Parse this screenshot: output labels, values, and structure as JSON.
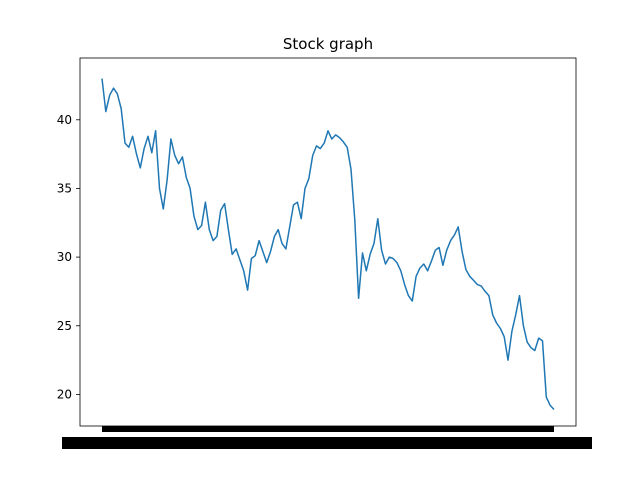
{
  "chart_data": {
    "type": "line",
    "title": "Stock graph",
    "xlabel": "",
    "ylabel": "",
    "x_tick_labels_note": "",
    "ylim": [
      17.7,
      44.5
    ],
    "yticks": [
      20,
      25,
      30,
      35,
      40
    ],
    "grid": false,
    "legend": "none",
    "color": "#1f77b4",
    "series": [
      {
        "values": [
          43.0,
          40.6,
          41.8,
          42.3,
          41.9,
          40.8,
          38.3,
          38.0,
          38.8,
          37.5,
          36.5,
          37.9,
          38.8,
          37.6,
          39.2,
          35.0,
          33.5,
          35.6,
          38.6,
          37.4,
          36.8,
          37.3,
          35.8,
          35.0,
          33.0,
          32.0,
          32.3,
          34.0,
          32.0,
          31.2,
          31.5,
          33.4,
          33.9,
          32.0,
          30.2,
          30.6,
          29.8,
          29.0,
          27.6,
          29.9,
          30.1,
          31.2,
          30.4,
          29.6,
          30.4,
          31.5,
          32.0,
          31.0,
          30.6,
          32.2,
          33.8,
          34.0,
          32.8,
          35.0,
          35.7,
          37.4,
          38.1,
          37.9,
          38.3,
          39.2,
          38.6,
          38.9,
          38.7,
          38.4,
          38.0,
          36.4,
          32.7,
          27.0,
          30.3,
          29.0,
          30.2,
          31.0,
          32.8,
          30.5,
          29.5,
          30.0,
          29.9,
          29.6,
          29.0,
          28.0,
          27.2,
          26.8,
          28.6,
          29.2,
          29.5,
          29.0,
          29.7,
          30.5,
          30.7,
          29.4,
          30.5,
          31.2,
          31.6,
          32.2,
          30.4,
          29.1,
          28.6,
          28.3,
          28.0,
          27.9,
          27.5,
          27.2,
          25.8,
          25.2,
          24.8,
          24.2,
          22.5,
          24.6,
          25.8,
          27.2,
          25.0,
          23.8,
          23.4,
          23.2,
          24.1,
          23.9,
          19.8,
          19.2,
          18.9
        ]
      }
    ]
  }
}
